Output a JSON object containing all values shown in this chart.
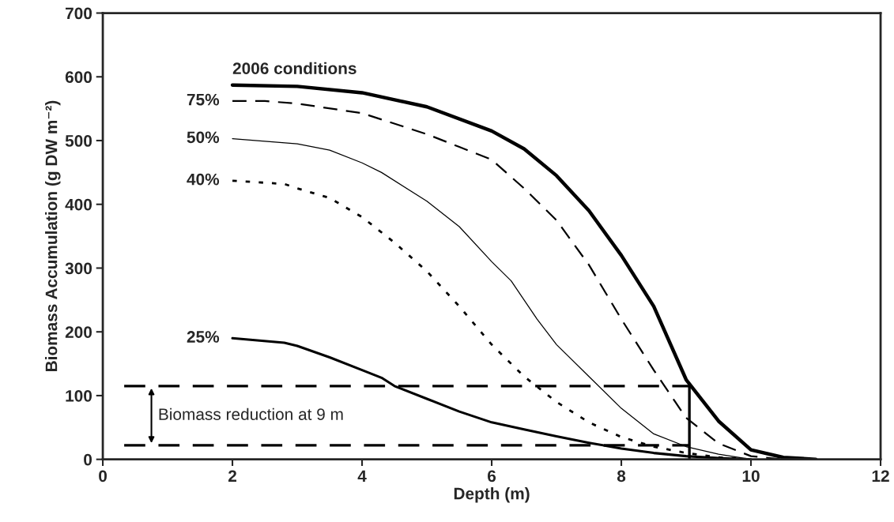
{
  "chart_data": {
    "type": "line",
    "xlabel": "Depth (m)",
    "ylabel": "Biomass Accumulation (g DW m⁻²)",
    "xlim": [
      0,
      12
    ],
    "xticks": [
      0,
      2,
      4,
      6,
      8,
      10,
      12
    ],
    "ylim": [
      0,
      700
    ],
    "yticks": [
      0,
      100,
      200,
      300,
      400,
      500,
      600,
      700
    ],
    "grid": false,
    "legend": false,
    "series": [
      {
        "name": "2006 conditions",
        "color": "#000000",
        "line_style": "solid",
        "x": [
          2,
          3,
          4,
          5,
          6,
          6.5,
          7,
          7.5,
          8,
          8.5,
          9,
          9.5,
          10,
          10.5,
          11
        ],
        "values": [
          587,
          585,
          575,
          553,
          515,
          487,
          445,
          390,
          320,
          240,
          125,
          60,
          15,
          3,
          0
        ]
      },
      {
        "name": "75%",
        "color": "#000000",
        "line_style": "dashed",
        "x": [
          2,
          2.5,
          3,
          4,
          5,
          5.5,
          6,
          6.5,
          7,
          7.5,
          8,
          8.5,
          9,
          9.5,
          10,
          10.5
        ],
        "values": [
          562,
          562,
          558,
          543,
          510,
          490,
          470,
          425,
          375,
          305,
          220,
          140,
          65,
          25,
          5,
          0
        ]
      },
      {
        "name": "50%",
        "color": "#000000",
        "line_style": "solid",
        "x": [
          2,
          3,
          3.5,
          4,
          4.3,
          5,
          5.5,
          6,
          6.3,
          6.7,
          7,
          7.5,
          8,
          8.5,
          9,
          9.5,
          10
        ],
        "values": [
          503,
          495,
          485,
          465,
          450,
          405,
          365,
          310,
          280,
          220,
          180,
          130,
          80,
          40,
          20,
          8,
          0
        ]
      },
      {
        "name": "40%",
        "color": "#000000",
        "line_style": "dotted",
        "x": [
          2,
          2.8,
          3,
          3.5,
          4,
          4.5,
          5,
          5.5,
          6,
          6.5,
          7,
          7.5,
          8,
          8.5,
          9,
          9.5,
          10
        ],
        "values": [
          437,
          432,
          425,
          410,
          380,
          340,
          295,
          240,
          180,
          130,
          90,
          58,
          35,
          20,
          10,
          3,
          0
        ]
      },
      {
        "name": "25%",
        "color": "#000000",
        "line_style": "solid",
        "x": [
          2,
          2.8,
          3,
          3.5,
          4,
          4.3,
          4.5,
          5,
          5.5,
          6,
          6.5,
          7,
          7.5,
          8,
          8.5,
          9,
          9.5,
          10
        ],
        "values": [
          190,
          183,
          178,
          160,
          140,
          128,
          115,
          95,
          75,
          58,
          47,
          36,
          26,
          17,
          10,
          5,
          2,
          0
        ]
      },
      {
        "color": "#000000",
        "line_style": "dashed",
        "x": [
          0.33,
          9.05
        ],
        "values": [
          115,
          115
        ]
      },
      {
        "color": "#000000",
        "line_style": "dashed",
        "x": [
          0.33,
          9.05
        ],
        "values": [
          22,
          22
        ]
      },
      {
        "color": "#000000",
        "line_style": "solid",
        "x": [
          9.05,
          9.05
        ],
        "values": [
          0,
          115
        ]
      }
    ],
    "annotations": [
      "Biomass reduction at 9 m"
    ]
  }
}
